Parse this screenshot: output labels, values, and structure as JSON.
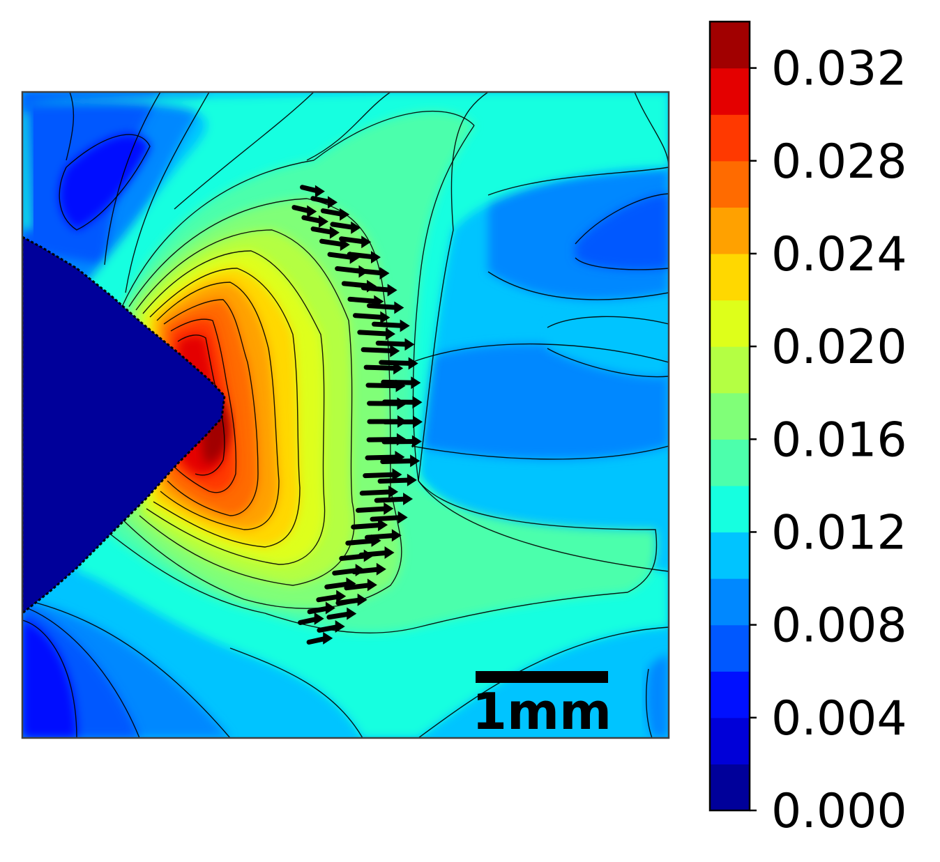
{
  "chart_data": {
    "type": "heatmap",
    "title": "",
    "xlabel": "",
    "ylabel": "",
    "colormap": "jet",
    "grid": false,
    "legend": "none",
    "colorbar": {
      "placement": "right",
      "range": [
        0.0,
        0.034
      ],
      "levels": [
        0.0,
        0.002,
        0.004,
        0.006,
        0.008,
        0.01,
        0.012,
        0.014,
        0.016,
        0.018,
        0.02,
        0.022,
        0.024,
        0.026,
        0.028,
        0.03,
        0.032,
        0.034
      ],
      "ticks": [
        0.0,
        0.004,
        0.008,
        0.012,
        0.016,
        0.02,
        0.024,
        0.028,
        0.032
      ],
      "tick_labels": [
        "0.000",
        "0.004",
        "0.008",
        "0.012",
        "0.016",
        "0.020",
        "0.024",
        "0.028",
        "0.032"
      ],
      "colors": [
        "#00009a",
        "#0000d8",
        "#0010ff",
        "#0058ff",
        "#0088ff",
        "#00c4ff",
        "#16ffe0",
        "#4cffac",
        "#80ff78",
        "#b4ff43",
        "#deff1a",
        "#ffd800",
        "#ffa100",
        "#ff6b00",
        "#ff3900",
        "#e40000",
        "#a10000"
      ]
    },
    "scale_bar": {
      "label": "1mm",
      "placement": "bottom-right"
    },
    "field": {
      "background_level": 0.01,
      "notch": {
        "type": "v-notch",
        "side": "left",
        "level": 0.0
      },
      "peak": {
        "location": "notch-tip",
        "max_level": 0.033
      },
      "annotation": "arrow-band"
    }
  }
}
